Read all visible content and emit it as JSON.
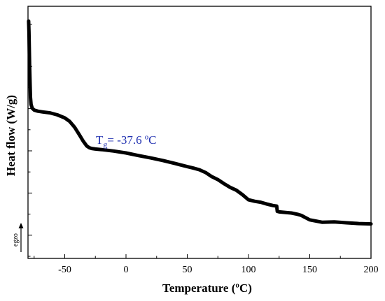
{
  "chart_data": {
    "type": "line",
    "title": "",
    "xlabel": "Temperature (ºC)",
    "ylabel": "Heat flow (W/g)",
    "xlim": [
      -80,
      200
    ],
    "xticks": [
      -50,
      0,
      50,
      100,
      150,
      200
    ],
    "y_tick_labels_shown": false,
    "grid": false,
    "exo_label": "egzo",
    "series": [
      {
        "x": [
          -79.5,
          -79.2,
          -79,
          -78.7,
          -78.3,
          -78,
          -77.5,
          -76.5,
          -75,
          -72,
          -68,
          -62,
          -56,
          -50,
          -46,
          -42,
          -38,
          -35,
          -32,
          -30,
          -28,
          -25,
          -20,
          -10,
          0,
          10,
          20,
          30,
          40,
          50,
          55,
          60,
          65,
          70,
          75,
          80,
          85,
          90,
          95,
          100,
          105,
          110,
          115,
          120,
          123,
          123.5,
          125,
          128,
          135,
          140,
          143,
          150,
          160,
          170,
          180,
          190,
          200
        ],
        "y": [
          88,
          82,
          74,
          64,
          54,
          47,
          43,
          41,
          40,
          39.4,
          39,
          38.5,
          37.4,
          35.8,
          33.9,
          30.8,
          26.6,
          23.3,
          20.6,
          19.7,
          19.3,
          19,
          18.7,
          17.9,
          16.9,
          15.5,
          14.2,
          12.8,
          11.2,
          9.5,
          8.7,
          7.8,
          6.3,
          4.1,
          2.5,
          0.3,
          -1.7,
          -3.2,
          -5.6,
          -8.4,
          -9.2,
          -9.7,
          -10.7,
          -11.5,
          -11.8,
          -14.6,
          -14.9,
          -15.1,
          -15.5,
          -16.2,
          -16.8,
          -19.2,
          -20.5,
          -20.3,
          -20.8,
          -21.2,
          -21.4
        ]
      }
    ],
    "annotation": {
      "text": "T",
      "subscript": "g",
      "suffix": "= -37.6 ºC",
      "color": "#1f2fb0"
    }
  }
}
